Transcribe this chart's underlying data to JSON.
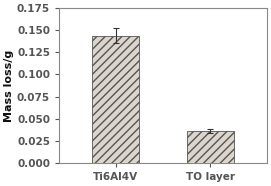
{
  "categories": [
    "Ti6Al4V",
    "TO layer"
  ],
  "values": [
    0.144,
    0.036
  ],
  "errors": [
    0.008,
    0.002
  ],
  "bar_color": "#dbd5cc",
  "bar_edgecolor": "#555555",
  "hatch": "////",
  "ylabel": "Mass loss/g",
  "ylim": [
    0.0,
    0.175
  ],
  "yticks": [
    0.0,
    0.025,
    0.05,
    0.075,
    0.1,
    0.125,
    0.15,
    0.175
  ],
  "bar_width": 0.5,
  "background_color": "#ffffff",
  "tick_fontsize": 7.5,
  "label_fontsize": 8,
  "errorbar_color": "#333333",
  "errorbar_capsize": 2,
  "spine_color": "#888888"
}
